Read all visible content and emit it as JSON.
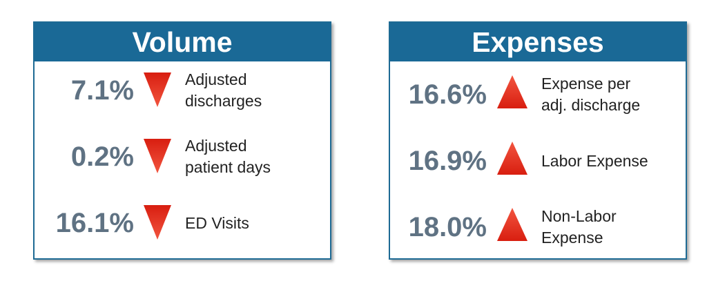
{
  "colors": {
    "header_bg": "#1a6996",
    "arrow_red": "#e52a1c",
    "pct_gray": "#5f7283"
  },
  "volume": {
    "title": "Volume",
    "items": [
      {
        "value": "7.1%",
        "direction": "down",
        "label": "Adjusted\ndischarges"
      },
      {
        "value": "0.2%",
        "direction": "down",
        "label": "Adjusted\npatient days"
      },
      {
        "value": "16.1%",
        "direction": "down",
        "label": "ED Visits"
      }
    ]
  },
  "expenses": {
    "title": "Expenses",
    "items": [
      {
        "value": "16.6%",
        "direction": "up",
        "label": "Expense per\nadj. discharge"
      },
      {
        "value": "16.9%",
        "direction": "up",
        "label": "Labor Expense"
      },
      {
        "value": "18.0%",
        "direction": "up",
        "label": "Non-Labor\nExpense"
      }
    ]
  }
}
